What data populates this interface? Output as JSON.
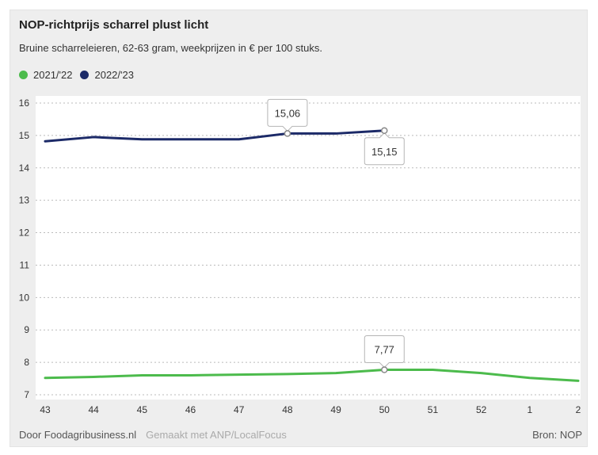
{
  "title": "NOP-richtprijs scharrel plust licht",
  "subtitle": "Bruine scharreleieren, 62-63 gram, weekprijzen in € per 100 stuks.",
  "footer": {
    "source_left": "Door Foodagribusiness.nl",
    "made_with": "Gemaakt met ANP/LocalFocus",
    "source_right": "Bron:  NOP"
  },
  "colors": {
    "series_2021": "#4cbb4c",
    "series_2022": "#1c2a68",
    "background": "#eeeeee",
    "grid": "#bbbbbb"
  },
  "chart_data": {
    "type": "line",
    "title": "NOP-richtprijs scharrel plust licht",
    "xlabel": "",
    "ylabel": "",
    "categories": [
      "43",
      "44",
      "45",
      "46",
      "47",
      "48",
      "49",
      "50",
      "51",
      "52",
      "1",
      "2"
    ],
    "ylim": [
      7,
      16
    ],
    "yticks": [
      7,
      8,
      9,
      10,
      11,
      12,
      13,
      14,
      15,
      16
    ],
    "grid": true,
    "legend_position": "top-left",
    "series": [
      {
        "name": "2021/'22",
        "color": "#4cbb4c",
        "values": [
          7.52,
          7.55,
          7.6,
          7.6,
          7.62,
          7.64,
          7.67,
          7.77,
          7.77,
          7.67,
          7.52,
          7.43
        ]
      },
      {
        "name": "2022/'23",
        "color": "#1c2a68",
        "values": [
          14.82,
          14.95,
          14.88,
          14.88,
          14.88,
          15.06,
          15.06,
          15.15,
          null,
          null,
          null,
          null
        ]
      }
    ],
    "annotations": [
      {
        "series": 1,
        "category": "48",
        "label": "15,06",
        "placement": "above"
      },
      {
        "series": 1,
        "category": "50",
        "label": "15,15",
        "placement": "below"
      },
      {
        "series": 0,
        "category": "50",
        "label": "7,77",
        "placement": "above"
      }
    ]
  }
}
